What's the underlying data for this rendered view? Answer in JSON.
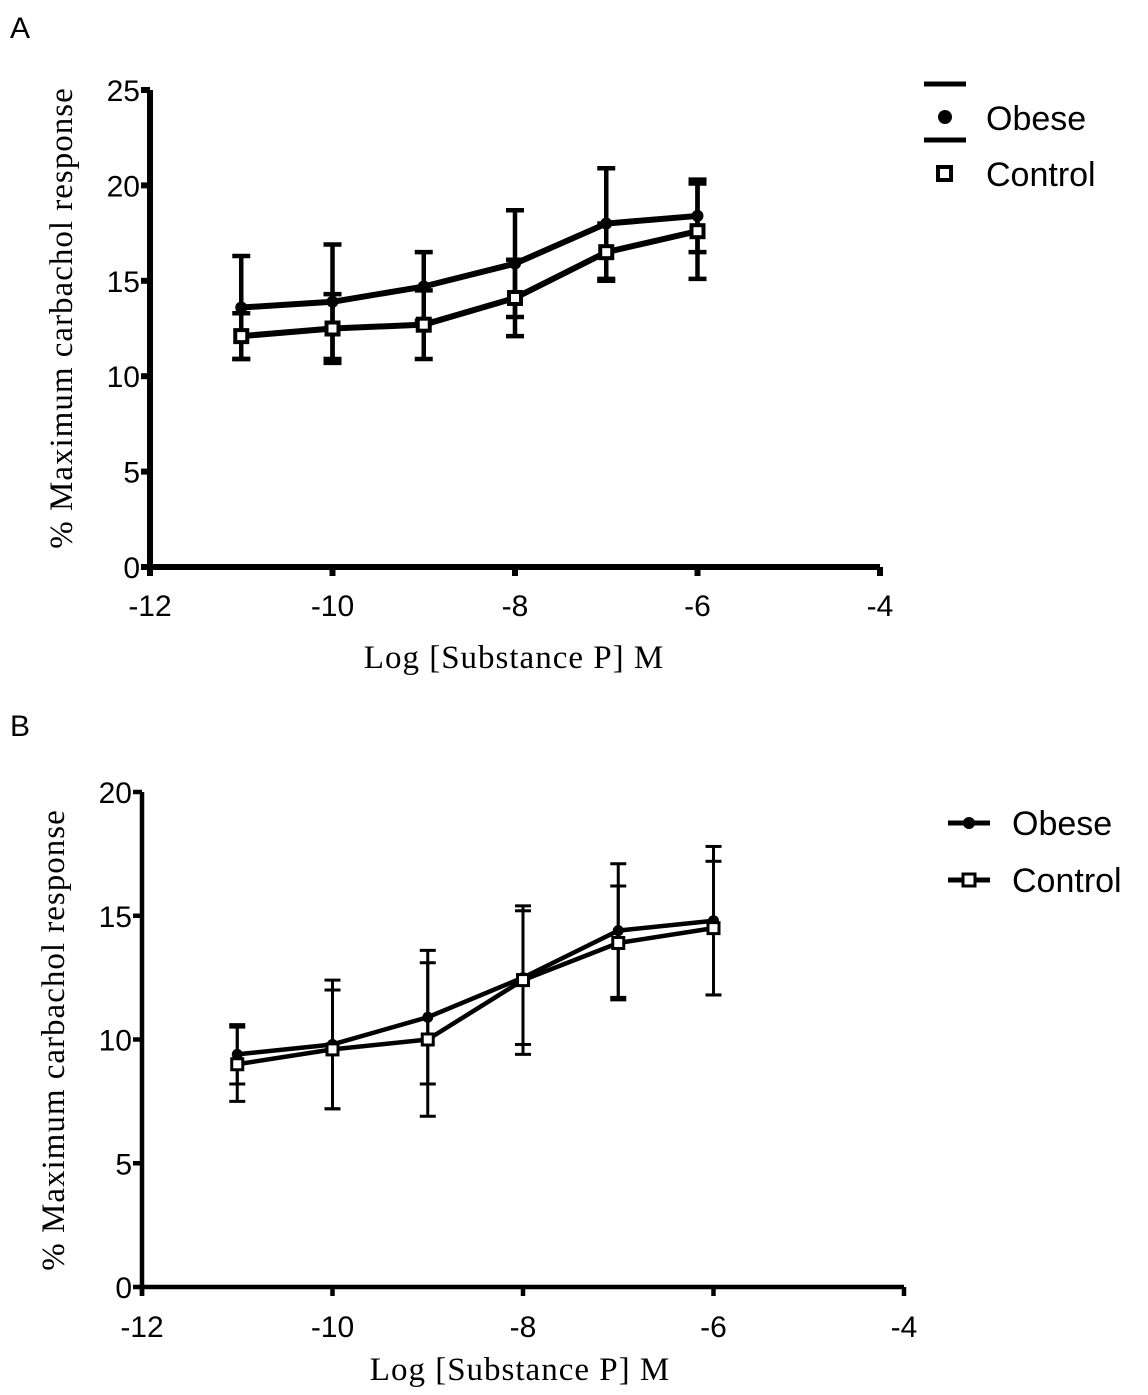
{
  "chart_data": [
    {
      "panel": "A",
      "type": "line",
      "xlabel": "Log [Substance P] M",
      "ylabel": "% Maximum carbachol response",
      "xlim": [
        -12,
        -4
      ],
      "ylim": [
        0,
        25
      ],
      "xticks": [
        -12,
        -10,
        -8,
        -6,
        -4
      ],
      "yticks": [
        0,
        5,
        10,
        15,
        20,
        25
      ],
      "x": [
        -11,
        -10,
        -9,
        -8,
        -7,
        -6
      ],
      "series": [
        {
          "name": "Obese",
          "marker": "circle",
          "values": [
            13.6,
            13.9,
            14.7,
            15.9,
            18.0,
            18.4
          ],
          "err": [
            2.7,
            3.0,
            1.8,
            2.8,
            2.9,
            1.9
          ]
        },
        {
          "name": "Control",
          "marker": "open-square",
          "values": [
            12.1,
            12.5,
            12.7,
            14.1,
            16.5,
            17.6
          ],
          "err": [
            1.2,
            1.8,
            1.8,
            2.0,
            1.5,
            2.5
          ]
        }
      ],
      "legend_position": "right",
      "grid": false
    },
    {
      "panel": "B",
      "type": "line",
      "xlabel": "Log [Substance P] M",
      "ylabel": "% Maximum carbachol response",
      "xlim": [
        -12,
        -4
      ],
      "ylim": [
        0,
        20
      ],
      "xticks": [
        -12,
        -10,
        -8,
        -6,
        -4
      ],
      "yticks": [
        0,
        5,
        10,
        15,
        20
      ],
      "x": [
        -11,
        -10,
        -9,
        -8,
        -7,
        -6
      ],
      "series": [
        {
          "name": "Obese",
          "marker": "circle",
          "values": [
            9.4,
            9.8,
            10.9,
            12.5,
            14.4,
            14.8
          ],
          "err": [
            1.2,
            2.6,
            2.7,
            2.7,
            2.7,
            3.0
          ]
        },
        {
          "name": "Control",
          "marker": "open-square",
          "values": [
            9.0,
            9.6,
            10.0,
            12.4,
            13.9,
            14.5
          ],
          "err": [
            1.5,
            2.4,
            3.1,
            3.0,
            2.3,
            2.7
          ]
        }
      ],
      "legend_position": "right",
      "grid": false
    }
  ]
}
